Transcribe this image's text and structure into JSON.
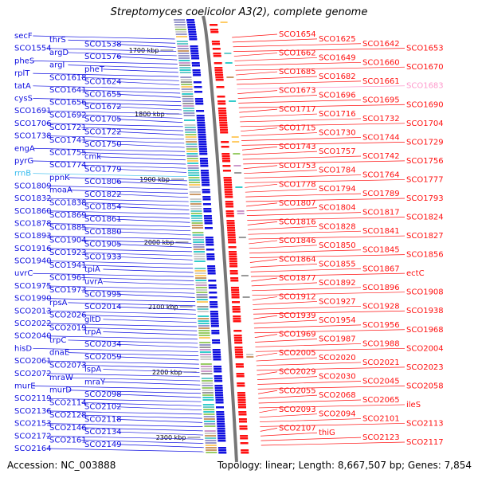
{
  "title": "Streptomyces coelicolor A3(2), complete genome",
  "accession": "Accession: NC_003888",
  "topology": "Topology: linear; Length: 8,667,507 bp; Genes: 7,854",
  "colors": {
    "left": "#1010e0",
    "right": "#ff1010",
    "rrna": "#33bbee",
    "trna": "#ff99cc",
    "backbone": "#777777"
  },
  "kbp_ticks": [
    "1700 kbp",
    "1800 kbp",
    "1900 kbp",
    "2000 kbp",
    "2100 kbp",
    "2200 kbp",
    "2300 kbp"
  ],
  "left_labels": [
    "secF",
    "thrS",
    "SCO1538",
    "SCO1554",
    "argD",
    "SCO1576",
    "pheS",
    "argI",
    "pheT",
    "rplT",
    "SCO1618",
    "SCO1624",
    "tatA",
    "SCO1641",
    "SCO1655",
    "cysS",
    "SCO1656",
    "SCO1672",
    "SCO1691",
    "SCO1692",
    "SCO1705",
    "SCO1706",
    "SCO1721",
    "SCO1722",
    "SCO1738",
    "SCO1741",
    "SCO1750",
    "engA",
    "SCO1755",
    "cmk",
    "pyrG",
    "SCO1774",
    "SCO1779",
    "rrnB",
    "ppnK",
    "SCO1806",
    "SCO1809",
    "moaA",
    "SCO1822",
    "SCO1832",
    "SCO1838",
    "SCO1854",
    "SCO1860",
    "SCO1869",
    "SCO1861",
    "SCO1878",
    "SCO1885",
    "SCO1880",
    "SCO1893",
    "SCO1904",
    "SCO1905",
    "SCO1916",
    "SCO1923",
    "SCO1933",
    "SCO1940",
    "SCO1941",
    "tpiA",
    "uvrC",
    "SCO1961",
    "uvrA",
    "SCO1975",
    "SCO1973",
    "SCO1995",
    "SCO1990",
    "rpsA",
    "SCO2014",
    "SCO2013",
    "SCO2026",
    "gltD",
    "SCO2022",
    "SCO2019",
    "trpA",
    "SCO2040",
    "trpC",
    "SCO2034",
    "hisD",
    "dnaE",
    "SCO2059",
    "SCO2061",
    "SCO2073",
    "lspA",
    "SCO2072",
    "mraW",
    "mraY",
    "murE",
    "murD",
    "SCO2098",
    "SCO2119",
    "SCO2114",
    "SCO2102",
    "SCO2136",
    "SCO2128",
    "SCO2118",
    "SCO2153",
    "SCO2146",
    "SCO2134",
    "SCO2172",
    "SCO2161",
    "SCO2149",
    "SCO2164"
  ],
  "right_labels": [
    "SCO1654",
    "SCO1625",
    "SCO1642",
    "SCO1653",
    "SCO1662",
    "SCO1649",
    "SCO1660",
    "SCO1670",
    "SCO1685",
    "SCO1682",
    "SCO1661",
    "SCO1683",
    "SCO1673",
    "SCO1696",
    "SCO1695",
    "SCO1690",
    "SCO1717",
    "SCO1716",
    "SCO1732",
    "SCO1704",
    "SCO1715",
    "SCO1730",
    "SCO1744",
    "SCO1729",
    "SCO1743",
    "SCO1757",
    "SCO1742",
    "SCO1756",
    "SCO1753",
    "SCO1784",
    "SCO1764",
    "SCO1777",
    "SCO1778",
    "SCO1794",
    "SCO1789",
    "SCO1793",
    "SCO1807",
    "SCO1804",
    "SCO1817",
    "SCO1824",
    "SCO1816",
    "SCO1828",
    "SCO1841",
    "SCO1827",
    "SCO1846",
    "SCO1850",
    "SCO1845",
    "SCO1856",
    "SCO1864",
    "SCO1855",
    "SCO1867",
    "ectC",
    "SCO1877",
    "SCO1892",
    "SCO1896",
    "SCO1908",
    "SCO1912",
    "SCO1927",
    "SCO1928",
    "SCO1938",
    "SCO1939",
    "SCO1954",
    "SCO1956",
    "SCO1968",
    "SCO1969",
    "SCO1987",
    "SCO1988",
    "SCO2004",
    "SCO2005",
    "SCO2020",
    "SCO2021",
    "SCO2023",
    "SCO2029",
    "SCO2030",
    "SCO2045",
    "SCO2058",
    "SCO2055",
    "SCO2068",
    "SCO2065",
    "ileS",
    "SCO2093",
    "SCO2094",
    "SCO2101",
    "SCO2113",
    "SCO2107",
    "thiG",
    "SCO2123",
    "SCO2117"
  ]
}
